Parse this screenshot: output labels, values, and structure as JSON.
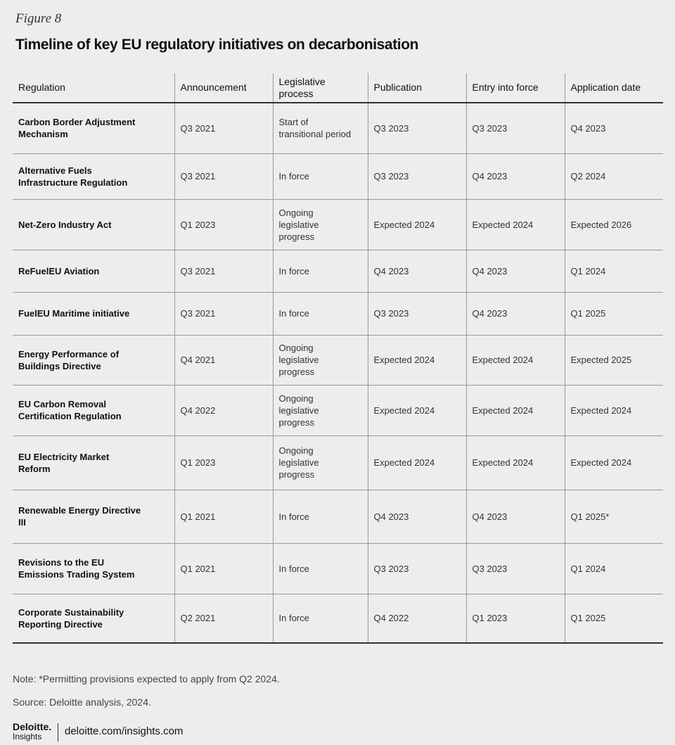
{
  "figure_label": "Figure 8",
  "title": "Timeline of key EU regulatory initiatives on decarbonisation",
  "table": {
    "headers": [
      "Regulation",
      "Announcement",
      "Legislative process",
      "Publication",
      "Entry into force",
      "Application date"
    ],
    "rows": [
      [
        "Carbon Border Adjustment Mechanism",
        "Q3 2021",
        "Start of transitional period",
        "Q3 2023",
        "Q3 2023",
        "Q4 2023"
      ],
      [
        "Alternative Fuels Infrastructure Regulation",
        "Q3 2021",
        "In force",
        "Q3 2023",
        "Q4 2023",
        "Q2 2024"
      ],
      [
        "Net-Zero Industry Act",
        "Q1 2023",
        "Ongoing legislative progress",
        "Expected 2024",
        "Expected 2024",
        "Expected 2026"
      ],
      [
        "ReFuelEU Aviation",
        "Q3 2021",
        "In force",
        "Q4 2023",
        "Q4 2023",
        "Q1 2024"
      ],
      [
        "FuelEU Maritime initiative",
        "Q3 2021",
        "In force",
        "Q3 2023",
        "Q4 2023",
        "Q1 2025"
      ],
      [
        "Energy Performance of Buildings Directive",
        "Q4 2021",
        "Ongoing legislative progress",
        "Expected 2024",
        "Expected 2024",
        "Expected 2025"
      ],
      [
        "EU Carbon Removal Certification Regulation",
        "Q4 2022",
        "Ongoing legislative progress",
        "Expected 2024",
        "Expected 2024",
        "Expected 2024"
      ],
      [
        "EU Electricity Market Reform",
        "Q1 2023",
        "Ongoing legislative progress",
        "Expected 2024",
        "Expected 2024",
        "Expected 2024"
      ],
      [
        "Renewable Energy Directive III",
        "Q1 2021",
        "In force",
        "Q4 2023",
        "Q4 2023",
        "Q1 2025*"
      ],
      [
        "Revisions to the EU Emissions Trading System",
        "Q1 2021",
        "In force",
        "Q3 2023",
        "Q3 2023",
        "Q1 2024"
      ],
      [
        "Corporate Sustainability Reporting Directive",
        "Q2 2021",
        "In force",
        "Q4 2022",
        "Q1 2023",
        "Q1 2025"
      ]
    ]
  },
  "note": "Note: *Permitting provisions expected to apply from Q2 2024.",
  "source": "Source: Deloitte analysis, 2024.",
  "footer": {
    "brand": "Deloitte.",
    "sub_brand": "Insights",
    "url": "deloitte.com/insights.com"
  }
}
